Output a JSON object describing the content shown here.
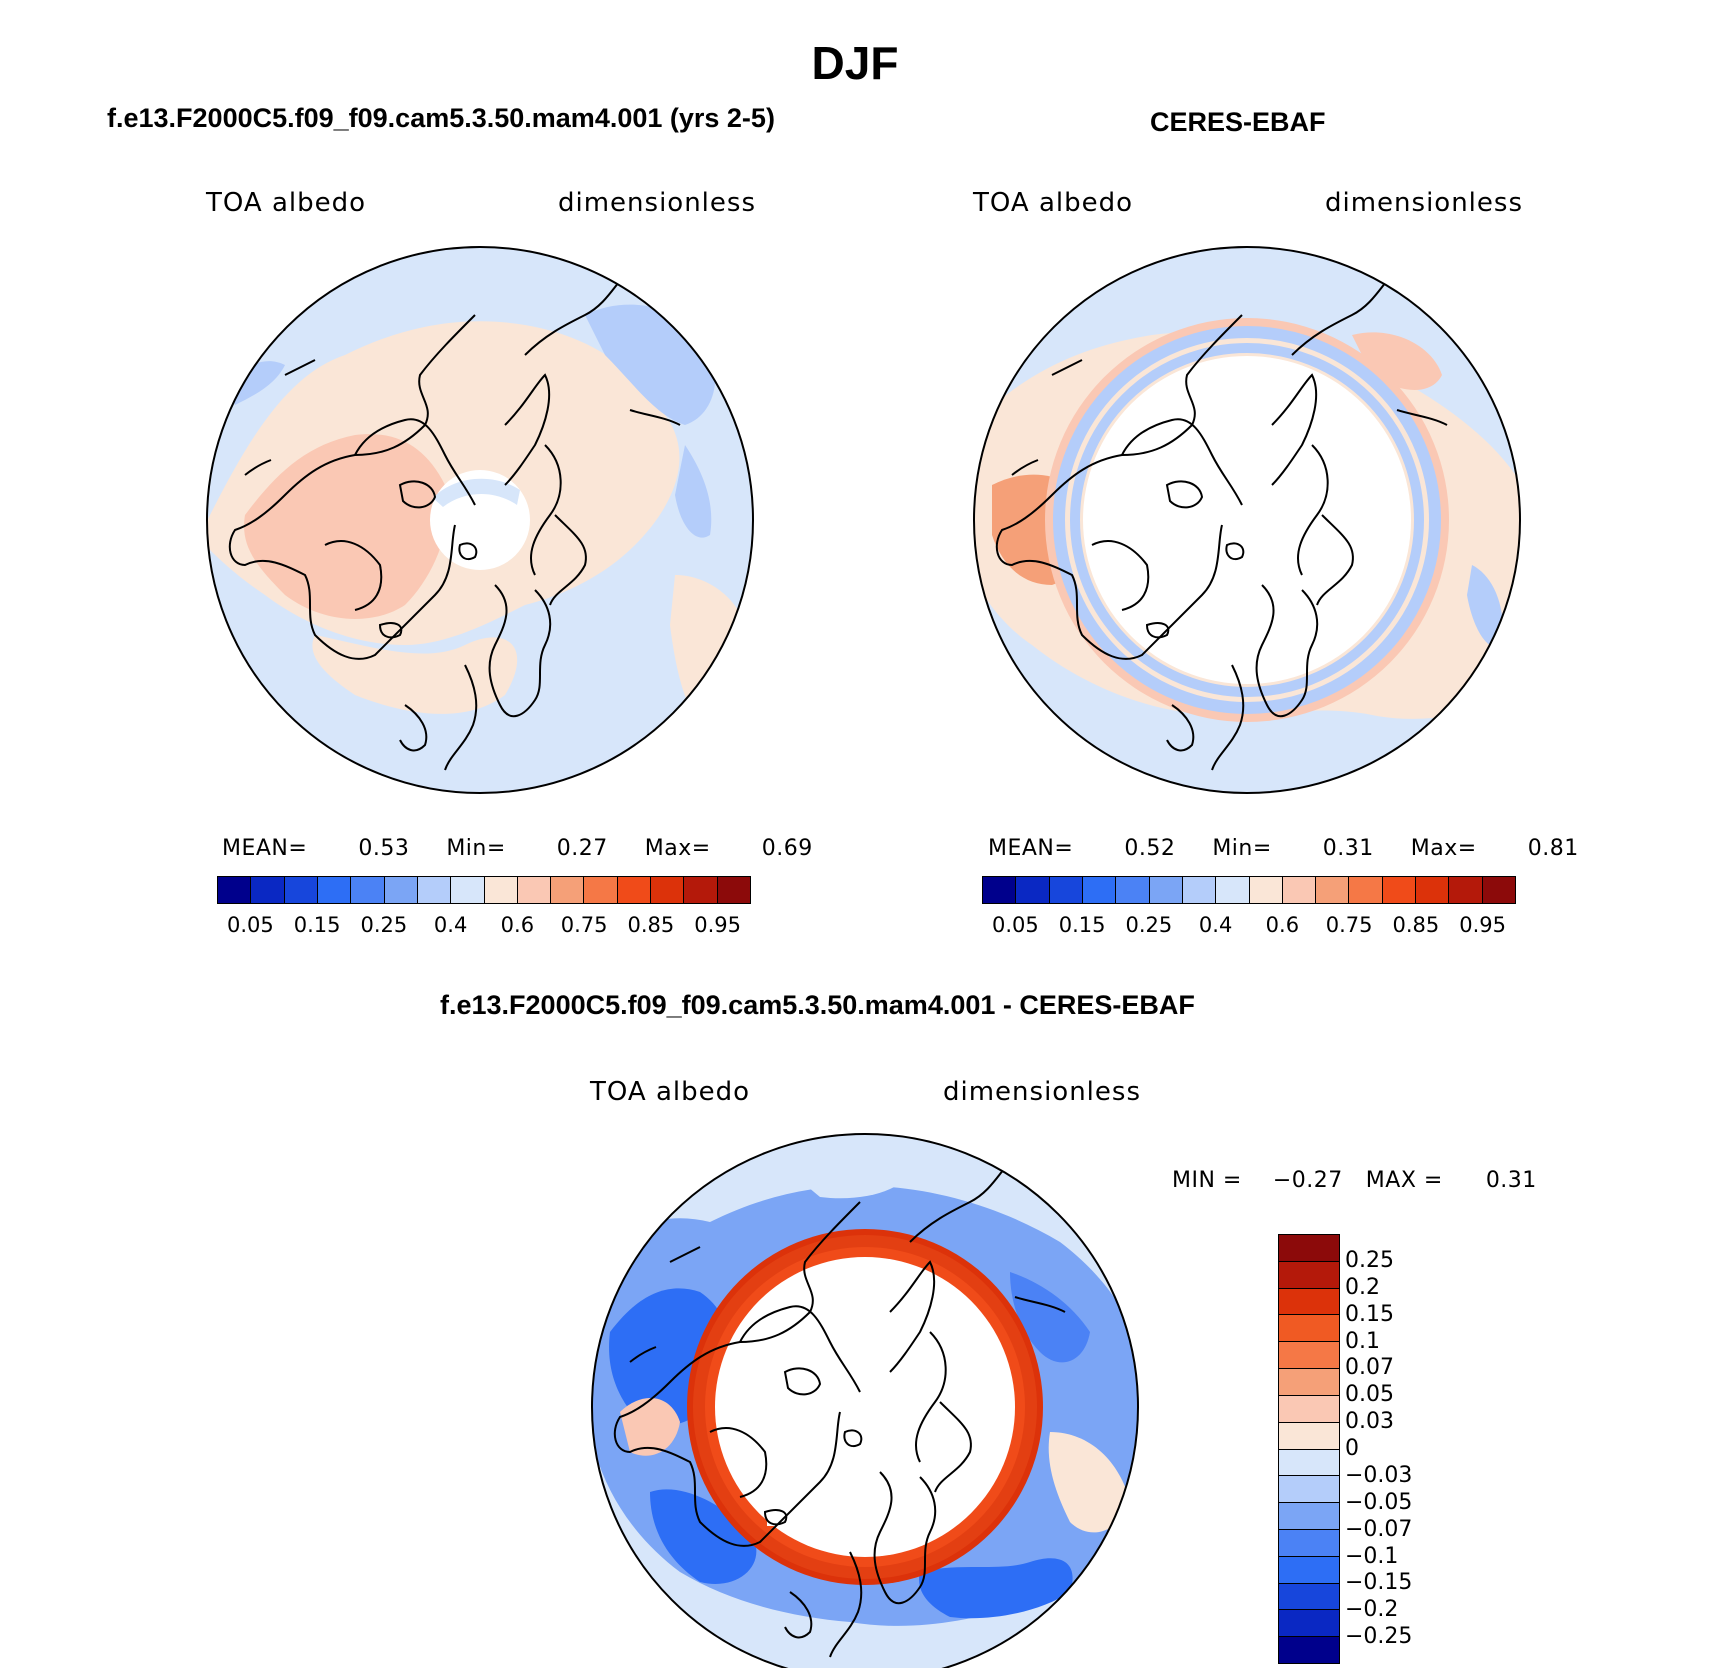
{
  "title": "DJF",
  "panels": {
    "model": {
      "title": "f.e13.F2000C5.f09_f09.cam5.3.50.mam4.001 (yrs 2-5)",
      "left_label": "TOA albedo",
      "right_label": "dimensionless",
      "stats": {
        "mean_label": "MEAN=",
        "mean": "0.53",
        "min_label": "Min=",
        "min": "0.27",
        "max_label": "Max=",
        "max": "0.69"
      }
    },
    "obs": {
      "title": "CERES-EBAF",
      "left_label": "TOA albedo",
      "right_label": "dimensionless",
      "stats": {
        "mean_label": "MEAN=",
        "mean": "0.52",
        "min_label": "Min=",
        "min": "0.31",
        "max_label": "Max=",
        "max": "0.81"
      }
    },
    "diff": {
      "title": "f.e13.F2000C5.f09_f09.cam5.3.50.mam4.001 - CERES-EBAF",
      "left_label": "TOA albedo",
      "right_label": "dimensionless",
      "stats": {
        "min_label": "MIN =",
        "min": "−0.27",
        "max_label": "MAX =",
        "max": "0.31"
      }
    }
  },
  "colorbar_abs": {
    "colors": [
      "#00008c",
      "#0a28c3",
      "#1746dc",
      "#2d6ef5",
      "#4b82f5",
      "#7ba5f5",
      "#b4cdfa",
      "#d7e6fa",
      "#fae6d7",
      "#fac8b4",
      "#f5a078",
      "#f57846",
      "#f04b19",
      "#dc320a",
      "#b4190a",
      "#8c0a0a"
    ],
    "ticks": [
      "0.05",
      "0.15",
      "0.25",
      "0.4",
      "0.6",
      "0.75",
      "0.85",
      "0.95"
    ]
  },
  "colorbar_diff": {
    "colors_top_to_bottom": [
      "#8c0a0a",
      "#b4190a",
      "#dc320a",
      "#f05a23",
      "#f57846",
      "#f5a078",
      "#fac8b4",
      "#fae6d7",
      "#d7e6fa",
      "#b4cdfa",
      "#7ba5f5",
      "#4b82f5",
      "#2d6ef5",
      "#1746dc",
      "#0a28c3",
      "#00008c"
    ],
    "ticks": [
      "0.25",
      "0.2",
      "0.15",
      "0.1",
      "0.07",
      "0.05",
      "0.03",
      "0",
      "−0.03",
      "−0.05",
      "−0.07",
      "−0.1",
      "−0.15",
      "−0.2",
      "−0.25"
    ]
  }
}
